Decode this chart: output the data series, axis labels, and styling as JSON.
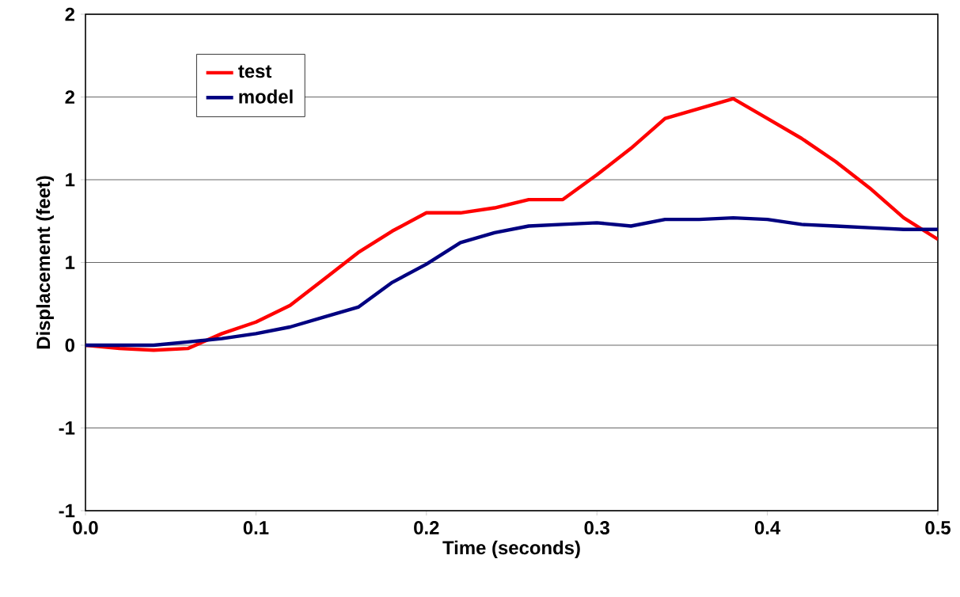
{
  "chart_data": {
    "type": "line",
    "xlabel": "Time (seconds)",
    "ylabel": "Displacement (feet)",
    "x": [
      0,
      0.02,
      0.04,
      0.06,
      0.08,
      0.1,
      0.12,
      0.14,
      0.16,
      0.18,
      0.2,
      0.22,
      0.24,
      0.26,
      0.28,
      0.3,
      0.32,
      0.34,
      0.36,
      0.38,
      0.4,
      0.42,
      0.44,
      0.46,
      0.48,
      0.5
    ],
    "series": [
      {
        "name": "test",
        "color": "#ff0000",
        "values": [
          0,
          -0.02,
          -0.03,
          -0.02,
          0.07,
          0.14,
          0.24,
          0.4,
          0.56,
          0.69,
          0.8,
          0.8,
          0.83,
          0.88,
          0.88,
          1.03,
          1.19,
          1.37,
          1.43,
          1.49,
          1.37,
          1.25,
          1.11,
          0.95,
          0.77,
          0.64
        ]
      },
      {
        "name": "model",
        "color": "#000080",
        "values": [
          0,
          0,
          0,
          0.02,
          0.04,
          0.07,
          0.11,
          0.17,
          0.23,
          0.38,
          0.49,
          0.62,
          0.68,
          0.72,
          0.73,
          0.74,
          0.72,
          0.76,
          0.76,
          0.77,
          0.76,
          0.73,
          0.72,
          0.71,
          0.7,
          0.7
        ]
      }
    ],
    "xlim": [
      0,
      0.5
    ],
    "xticks": [
      {
        "value": 0,
        "label": "0.0"
      },
      0.1,
      0.2,
      0.3,
      0.4,
      0.5
    ],
    "ylim": [
      -1,
      2
    ],
    "yticks": [
      -1,
      {
        "value": -0.5,
        "label": "-1"
      },
      0,
      {
        "value": 0.5,
        "label": "1"
      },
      1,
      {
        "value": 1.5,
        "label": "2"
      },
      2
    ],
    "grid": "y",
    "legend": "top left",
    "marker": "none",
    "line_style": "solid"
  }
}
